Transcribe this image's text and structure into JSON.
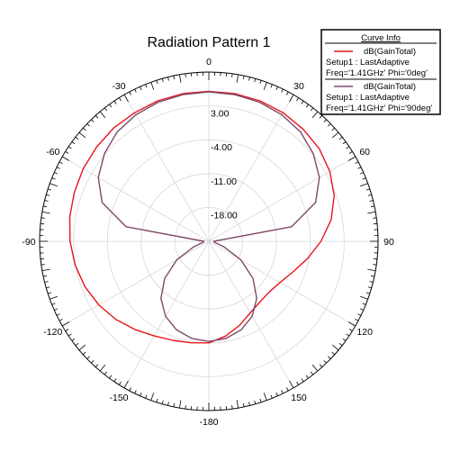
{
  "chart_data": {
    "type": "polar",
    "title": "Radiation Pattern 1",
    "r_ticks": [
      {
        "value": 3,
        "label": "3.00"
      },
      {
        "value": -4,
        "label": "-4.00"
      },
      {
        "value": -11,
        "label": "-11.00"
      },
      {
        "value": -18,
        "label": "-18.00"
      }
    ],
    "r_range": [
      -25,
      10
    ],
    "angle_ticks": [
      {
        "deg": 0,
        "label": "0"
      },
      {
        "deg": 30,
        "label": "30"
      },
      {
        "deg": 60,
        "label": "60"
      },
      {
        "deg": 90,
        "label": "90"
      },
      {
        "deg": 120,
        "label": "120"
      },
      {
        "deg": 150,
        "label": "150"
      },
      {
        "deg": 180,
        "label": "-180"
      },
      {
        "deg": -150,
        "label": "-150"
      },
      {
        "deg": -120,
        "label": "-120"
      },
      {
        "deg": -90,
        "label": "-90"
      },
      {
        "deg": -60,
        "label": "-60"
      },
      {
        "deg": -30,
        "label": "-30"
      }
    ],
    "legend": {
      "header": "Curve Info",
      "position": "top-right",
      "entries": [
        {
          "name": "dB(GainTotal)",
          "line1": "Setup1 : LastAdaptive",
          "line2": "Freq='1.41GHz' Phi='0deg'"
        },
        {
          "name": "dB(GainTotal)",
          "line1": "Setup1 : LastAdaptive",
          "line2": "Freq='1.41GHz' Phi='90deg'"
        }
      ]
    },
    "series": [
      {
        "color": "#e8141c",
        "theta": [
          -180,
          -170,
          -160,
          -150,
          -140,
          -130,
          -120,
          -110,
          -100,
          -90,
          -80,
          -70,
          -60,
          -50,
          -40,
          -30,
          -20,
          -10,
          0,
          10,
          20,
          30,
          40,
          50,
          60,
          70,
          80,
          90,
          100,
          110,
          120,
          130,
          140,
          150,
          160,
          170,
          180
        ],
        "values": [
          -4,
          -3.7,
          -3.2,
          -2.4,
          -1.2,
          0.1,
          1.3,
          2.3,
          3.1,
          3.7,
          4.2,
          4.6,
          5.0,
          5.3,
          5.6,
          5.7,
          5.9,
          6.0,
          6.0,
          6.0,
          5.9,
          5.7,
          5.3,
          4.8,
          3.9,
          2.6,
          0.7,
          -1.8,
          -4.3,
          -6.5,
          -8.0,
          -8.7,
          -8.6,
          -7.9,
          -6.5,
          -5.1,
          -4
        ]
      },
      {
        "color": "#7d4a6a",
        "theta": [
          -180,
          -170,
          -160,
          -150,
          -140,
          -130,
          -120,
          -110,
          -100,
          -90,
          -80,
          -70,
          -60,
          -50,
          -40,
          -30,
          -20,
          -10,
          0,
          10,
          20,
          30,
          40,
          50,
          60,
          70,
          80,
          90,
          100,
          110,
          120,
          130,
          140,
          150,
          160,
          170,
          180
        ],
        "values": [
          -4.3,
          -4.6,
          -5.5,
          -7.1,
          -9.6,
          -13.1,
          -17.4,
          -21.7,
          -23.8,
          -24.0,
          -7.6,
          -1.5,
          1.4,
          3.2,
          4.5,
          5.2,
          5.6,
          5.8,
          5.9,
          5.8,
          5.6,
          5.2,
          4.5,
          3.2,
          1.4,
          -1.5,
          -7.6,
          -24.0,
          -23.8,
          -21.7,
          -17.4,
          -13.1,
          -9.6,
          -7.1,
          -5.5,
          -4.6,
          -4.3
        ]
      }
    ]
  }
}
